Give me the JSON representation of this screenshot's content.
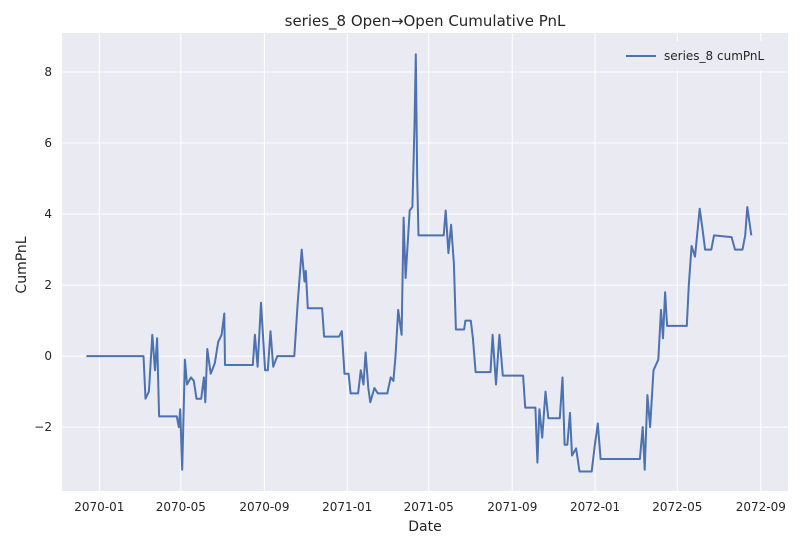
{
  "chart_data": {
    "type": "line",
    "title": "series_8 Open→Open Cumulative PnL",
    "xlabel": "Date",
    "ylabel": "CumPnL",
    "x_ticks": [
      "2070-01",
      "2070-05",
      "2070-09",
      "2071-01",
      "2071-05",
      "2071-09",
      "2072-01",
      "2072-05",
      "2072-09"
    ],
    "y_ticks": [
      "−2",
      "0",
      "2",
      "4",
      "6",
      "8"
    ],
    "ylim": [
      -3.8,
      9.1
    ],
    "xlim": [
      "2069-11-07",
      "2072-10-11"
    ],
    "grid": true,
    "background": "#eaeaf2",
    "legend": {
      "position": "top-right"
    },
    "series": [
      {
        "name": "series_8 cumPnL",
        "color": "#4c72b0",
        "points": [
          [
            "2069-12-13",
            0.0
          ],
          [
            "2070-03-07",
            0.0
          ],
          [
            "2070-03-10",
            -1.2
          ],
          [
            "2070-03-15",
            -1.0
          ],
          [
            "2070-03-20",
            0.6
          ],
          [
            "2070-03-24",
            -0.4
          ],
          [
            "2070-03-27",
            0.5
          ],
          [
            "2070-03-30",
            -1.7
          ],
          [
            "2070-04-25",
            -1.7
          ],
          [
            "2070-04-28",
            -2.0
          ],
          [
            "2070-04-30",
            -1.5
          ],
          [
            "2070-05-03",
            -3.2
          ],
          [
            "2070-05-07",
            -0.1
          ],
          [
            "2070-05-10",
            -0.8
          ],
          [
            "2070-05-16",
            -0.6
          ],
          [
            "2070-05-20",
            -0.7
          ],
          [
            "2070-05-24",
            -1.2
          ],
          [
            "2070-05-31",
            -1.2
          ],
          [
            "2070-06-04",
            -0.6
          ],
          [
            "2070-06-06",
            -1.3
          ],
          [
            "2070-06-09",
            0.2
          ],
          [
            "2070-06-14",
            -0.5
          ],
          [
            "2070-06-20",
            -0.2
          ],
          [
            "2070-06-25",
            0.4
          ],
          [
            "2070-06-30",
            0.6
          ],
          [
            "2070-07-04",
            1.2
          ],
          [
            "2070-07-05",
            -0.25
          ],
          [
            "2070-08-15",
            -0.25
          ],
          [
            "2070-08-18",
            0.6
          ],
          [
            "2070-08-22",
            -0.3
          ],
          [
            "2070-08-27",
            1.5
          ],
          [
            "2070-09-02",
            -0.4
          ],
          [
            "2070-09-06",
            -0.4
          ],
          [
            "2070-09-10",
            0.7
          ],
          [
            "2070-09-14",
            -0.3
          ],
          [
            "2070-09-20",
            0.0
          ],
          [
            "2070-10-15",
            0.0
          ],
          [
            "2070-10-20",
            1.5
          ],
          [
            "2070-10-26",
            3.0
          ],
          [
            "2070-10-30",
            2.1
          ],
          [
            "2070-11-01",
            2.4
          ],
          [
            "2070-11-04",
            1.35
          ],
          [
            "2070-11-25",
            1.35
          ],
          [
            "2070-11-28",
            0.55
          ],
          [
            "2070-12-20",
            0.55
          ],
          [
            "2070-12-24",
            0.7
          ],
          [
            "2070-12-28",
            -0.5
          ],
          [
            "2071-01-03",
            -0.5
          ],
          [
            "2071-01-06",
            -1.05
          ],
          [
            "2071-01-17",
            -1.05
          ],
          [
            "2071-01-21",
            -0.4
          ],
          [
            "2071-01-25",
            -0.8
          ],
          [
            "2071-01-28",
            0.1
          ],
          [
            "2071-02-01",
            -0.9
          ],
          [
            "2071-02-04",
            -1.3
          ],
          [
            "2071-02-10",
            -0.9
          ],
          [
            "2071-02-15",
            -1.05
          ],
          [
            "2071-03-01",
            -1.05
          ],
          [
            "2071-03-06",
            -0.6
          ],
          [
            "2071-03-10",
            -0.7
          ],
          [
            "2071-03-13",
            0.0
          ],
          [
            "2071-03-17",
            1.3
          ],
          [
            "2071-03-22",
            0.6
          ],
          [
            "2071-03-25",
            3.9
          ],
          [
            "2071-03-28",
            2.2
          ],
          [
            "2071-04-03",
            4.1
          ],
          [
            "2071-04-07",
            4.2
          ],
          [
            "2071-04-10",
            6.5
          ],
          [
            "2071-04-12",
            8.5
          ],
          [
            "2071-04-14",
            5.0
          ],
          [
            "2071-04-16",
            3.4
          ],
          [
            "2071-05-23",
            3.4
          ],
          [
            "2071-05-26",
            4.1
          ],
          [
            "2071-05-30",
            2.9
          ],
          [
            "2071-06-03",
            3.7
          ],
          [
            "2071-06-07",
            2.6
          ],
          [
            "2071-06-10",
            0.75
          ],
          [
            "2071-06-22",
            0.75
          ],
          [
            "2071-06-24",
            1.0
          ],
          [
            "2071-07-02",
            1.0
          ],
          [
            "2071-07-05",
            0.5
          ],
          [
            "2071-07-09",
            -0.45
          ],
          [
            "2071-07-31",
            -0.45
          ],
          [
            "2071-08-03",
            0.6
          ],
          [
            "2071-08-08",
            -0.8
          ],
          [
            "2071-08-13",
            0.6
          ],
          [
            "2071-08-18",
            -0.55
          ],
          [
            "2071-09-17",
            -0.55
          ],
          [
            "2071-09-20",
            -1.45
          ],
          [
            "2071-10-05",
            -1.45
          ],
          [
            "2071-10-08",
            -3.0
          ],
          [
            "2071-10-11",
            -1.5
          ],
          [
            "2071-10-15",
            -2.3
          ],
          [
            "2071-10-20",
            -1.0
          ],
          [
            "2071-10-24",
            -1.75
          ],
          [
            "2071-11-10",
            -1.75
          ],
          [
            "2071-11-14",
            -0.6
          ],
          [
            "2071-11-17",
            -2.5
          ],
          [
            "2071-11-21",
            -2.5
          ],
          [
            "2071-11-25",
            -1.6
          ],
          [
            "2071-11-28",
            -2.8
          ],
          [
            "2071-12-04",
            -2.6
          ],
          [
            "2071-12-09",
            -3.25
          ],
          [
            "2071-12-27",
            -3.25
          ],
          [
            "2071-12-31",
            -2.6
          ],
          [
            "2072-01-05",
            -1.9
          ],
          [
            "2072-01-09",
            -2.9
          ],
          [
            "2072-03-07",
            -2.9
          ],
          [
            "2072-03-11",
            -2.0
          ],
          [
            "2072-03-14",
            -3.2
          ],
          [
            "2072-03-18",
            -1.1
          ],
          [
            "2072-03-22",
            -2.0
          ],
          [
            "2072-03-27",
            -0.4
          ],
          [
            "2072-04-03",
            -0.1
          ],
          [
            "2072-04-07",
            1.3
          ],
          [
            "2072-04-10",
            0.5
          ],
          [
            "2072-04-13",
            1.8
          ],
          [
            "2072-04-16",
            0.85
          ],
          [
            "2072-05-15",
            0.85
          ],
          [
            "2072-05-18",
            2.0
          ],
          [
            "2072-05-22",
            3.1
          ],
          [
            "2072-05-27",
            2.8
          ],
          [
            "2072-06-03",
            4.15
          ],
          [
            "2072-06-07",
            3.6
          ],
          [
            "2072-06-11",
            3.0
          ],
          [
            "2072-06-20",
            3.0
          ],
          [
            "2072-06-24",
            3.4
          ],
          [
            "2072-07-20",
            3.35
          ],
          [
            "2072-07-25",
            3.0
          ],
          [
            "2072-08-05",
            3.0
          ],
          [
            "2072-08-09",
            3.4
          ],
          [
            "2072-08-12",
            4.2
          ],
          [
            "2072-08-18",
            3.4
          ]
        ]
      }
    ]
  }
}
